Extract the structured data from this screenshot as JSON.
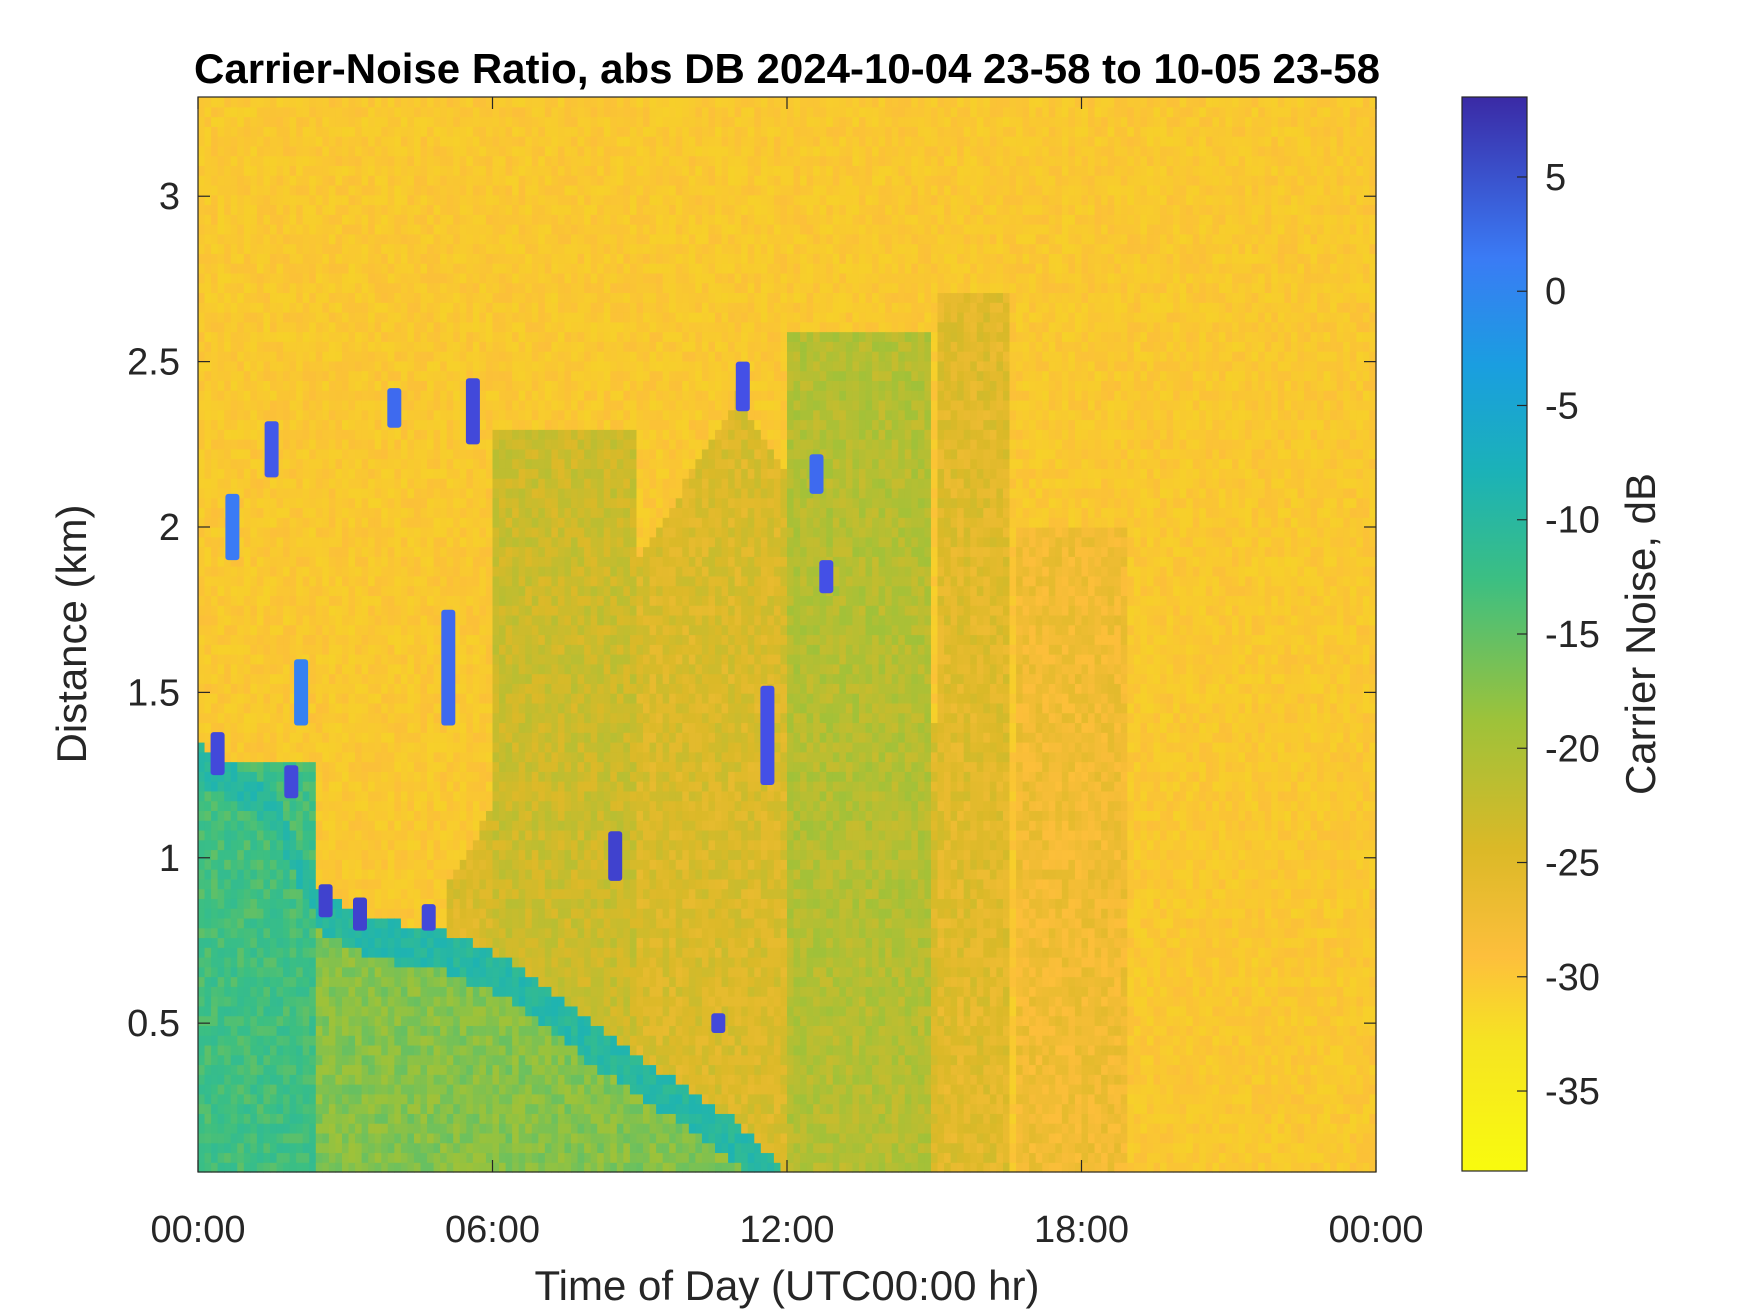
{
  "chart_data": {
    "type": "heatmap",
    "title": "Carrier-Noise Ratio, abs DB 2024-10-04 23-58 to 10-05 23-58",
    "xlabel": "Time of Day (UTC00:00 hr)",
    "ylabel": "Distance (km)",
    "xlim_hours": [
      0,
      24
    ],
    "ylim_km": [
      0.05,
      3.3
    ],
    "x_ticks": [
      {
        "value": 0,
        "label": "00:00"
      },
      {
        "value": 6,
        "label": "06:00"
      },
      {
        "value": 12,
        "label": "12:00"
      },
      {
        "value": 18,
        "label": "18:00"
      },
      {
        "value": 24,
        "label": "00:00"
      }
    ],
    "y_ticks": [
      {
        "value": 0.5,
        "label": "0.5"
      },
      {
        "value": 1,
        "label": "1"
      },
      {
        "value": 1.5,
        "label": "1.5"
      },
      {
        "value": 2,
        "label": "2"
      },
      {
        "value": 2.5,
        "label": "2.5"
      },
      {
        "value": 3,
        "label": "3"
      }
    ],
    "colorbar": {
      "label": "Carrier Noise, dB",
      "range": [
        -38.5,
        8.5
      ],
      "colormap": "parula-reversed",
      "ticks": [
        {
          "value": 5,
          "label": "5"
        },
        {
          "value": 0,
          "label": "0"
        },
        {
          "value": -5,
          "label": "-5"
        },
        {
          "value": -10,
          "label": "-10"
        },
        {
          "value": -15,
          "label": "-15"
        },
        {
          "value": -20,
          "label": "-20"
        },
        {
          "value": -25,
          "label": "-25"
        },
        {
          "value": -30,
          "label": "-30"
        },
        {
          "value": -35,
          "label": "-35"
        }
      ]
    },
    "background_value_db": -31,
    "boundary_layer_top_km": [
      {
        "hour": 0,
        "km": 1.35
      },
      {
        "hour": 1.5,
        "km": 1.22
      },
      {
        "hour": 2.5,
        "km": 0.9
      },
      {
        "hour": 3.5,
        "km": 0.82
      },
      {
        "hour": 5,
        "km": 0.78
      },
      {
        "hour": 6.5,
        "km": 0.68
      },
      {
        "hour": 8,
        "km": 0.5
      },
      {
        "hour": 9.5,
        "km": 0.35
      },
      {
        "hour": 11,
        "km": 0.2
      },
      {
        "hour": 12,
        "km": 0.05
      }
    ],
    "cloud_returns": [
      {
        "hour": 0.4,
        "km_bottom": 1.25,
        "km_top": 1.38,
        "db": 4
      },
      {
        "hour": 0.7,
        "km_bottom": 1.9,
        "km_top": 2.1,
        "db": -2
      },
      {
        "hour": 1.5,
        "km_bottom": 2.15,
        "km_top": 2.32,
        "db": 2
      },
      {
        "hour": 1.9,
        "km_bottom": 1.18,
        "km_top": 1.28,
        "db": 4
      },
      {
        "hour": 2.1,
        "km_bottom": 1.4,
        "km_top": 1.6,
        "db": -3
      },
      {
        "hour": 2.6,
        "km_bottom": 0.82,
        "km_top": 0.92,
        "db": 5
      },
      {
        "hour": 3.3,
        "km_bottom": 0.78,
        "km_top": 0.88,
        "db": 5
      },
      {
        "hour": 4.0,
        "km_bottom": 2.3,
        "km_top": 2.42,
        "db": 0
      },
      {
        "hour": 4.7,
        "km_bottom": 0.78,
        "km_top": 0.86,
        "db": 4
      },
      {
        "hour": 5.1,
        "km_bottom": 1.4,
        "km_top": 1.75,
        "db": 0
      },
      {
        "hour": 5.6,
        "km_bottom": 2.25,
        "km_top": 2.45,
        "db": 4
      },
      {
        "hour": 8.5,
        "km_bottom": 0.93,
        "km_top": 1.08,
        "db": 5
      },
      {
        "hour": 11.1,
        "km_bottom": 2.35,
        "km_top": 2.5,
        "db": 3
      },
      {
        "hour": 10.6,
        "km_bottom": 0.47,
        "km_top": 0.53,
        "db": 4
      },
      {
        "hour": 11.6,
        "km_bottom": 1.22,
        "km_top": 1.52,
        "db": 3
      },
      {
        "hour": 12.6,
        "km_bottom": 2.1,
        "km_top": 2.22,
        "db": 0
      },
      {
        "hour": 12.8,
        "km_bottom": 1.8,
        "km_top": 1.9,
        "db": 3
      }
    ]
  }
}
